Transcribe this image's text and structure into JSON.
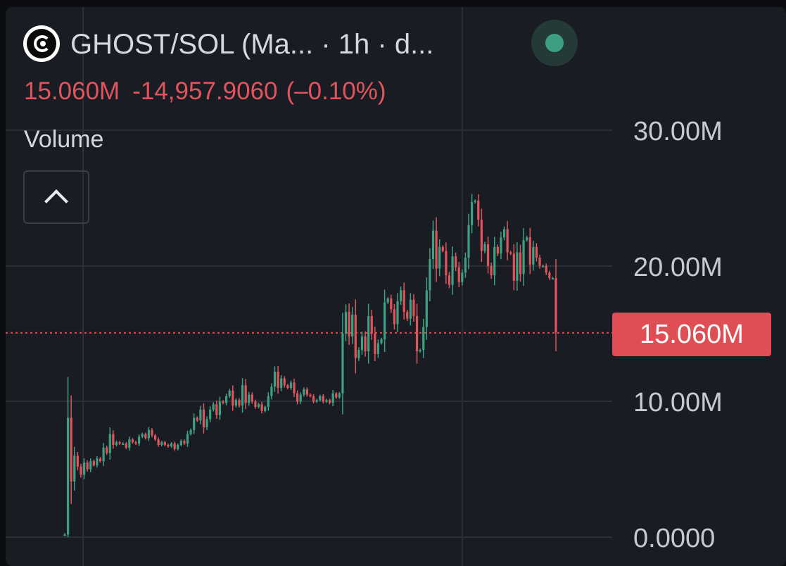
{
  "header": {
    "pair_title": "GHOST/SOL (Ma...  · 1h · d...",
    "logo_icon": "ghost-coin-logo-icon",
    "status_color": "#3f9f82"
  },
  "stats": {
    "last_value": "15.060M",
    "change": "-14,957.9060",
    "change_pct": "(–0.10%)",
    "color": "#e2545b"
  },
  "indicator": {
    "label": "Volume",
    "collapse_icon": "chevron-up-icon"
  },
  "price_line": {
    "label": "15.060M",
    "color": "#df4e55"
  },
  "colors": {
    "up": "#3f9f82",
    "down": "#e2545b",
    "background": "#1a1c24",
    "grid": "#2c2f38"
  },
  "chart_data": {
    "type": "line",
    "description_series": "Volume",
    "ylim": [
      0,
      30000000
    ],
    "y_ticks": [
      "30.00M",
      "20.00M",
      "10.00M",
      "0.0000"
    ],
    "y_tick_values": [
      30000000,
      20000000,
      10000000,
      0
    ],
    "grid": true,
    "current_value": 15060000,
    "series": [
      {
        "values": [
          0.2,
          8.8,
          4.1,
          6.0,
          5.2,
          4.6,
          5.5,
          5.0,
          5.6,
          5.3,
          5.8,
          5.6,
          6.6,
          6.2,
          7.6,
          6.8,
          7.0,
          6.9,
          6.9,
          6.6,
          7.2,
          7.0,
          6.9,
          7.4,
          7.6,
          7.3,
          7.9,
          7.5,
          7.2,
          6.8,
          7.0,
          6.8,
          6.7,
          6.9,
          6.5,
          6.8,
          7.1,
          6.9,
          7.6,
          7.9,
          8.8,
          8.6,
          9.4,
          8.1,
          8.7,
          9.4,
          9.8,
          9.0,
          10.0,
          9.9,
          10.4,
          10.8,
          9.7,
          10.1,
          9.7,
          11.2,
          9.9,
          10.5,
          10.0,
          9.6,
          9.8,
          9.3,
          9.6,
          10.4,
          11.1,
          12.2,
          11.0,
          11.7,
          11.2,
          11.0,
          11.4,
          10.6,
          10.0,
          10.5,
          10.9,
          10.5,
          10.4,
          10.0,
          10.1,
          10.4,
          10.0,
          10.1,
          9.9,
          10.6,
          10.3,
          10.6,
          15.0,
          16.6,
          14.8,
          16.4,
          13.2,
          13.8,
          14.8,
          13.7,
          16.3,
          15.0,
          13.5,
          14.3,
          14.6,
          17.3,
          17.6,
          16.8,
          15.7,
          17.4,
          18.2,
          16.6,
          16.1,
          17.5,
          16.3,
          13.7,
          13.8,
          15.5,
          18.2,
          20.5,
          22.6,
          19.8,
          21.4,
          21.1,
          19.3,
          18.6,
          20.7,
          19.9,
          18.8,
          19.5,
          20.6,
          23.0,
          24.7,
          24.8,
          23.4,
          21.1,
          21.6,
          20.0,
          19.3,
          21.4,
          20.9,
          22.1,
          22.7,
          21.0,
          20.9,
          18.9,
          21.0,
          19.4,
          21.9,
          22.1,
          20.1,
          21.4,
          20.6,
          20.0,
          20.0,
          19.5,
          19.1,
          19.1,
          15.1
        ]
      }
    ]
  }
}
